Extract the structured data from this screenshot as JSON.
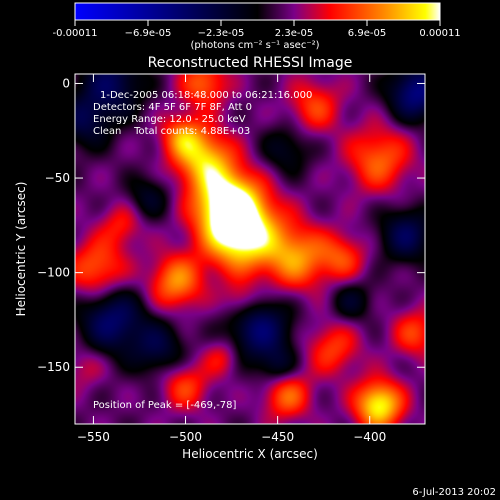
{
  "chart_data": {
    "type": "heatmap",
    "title": "Reconstructed RHESSI Image",
    "xlabel": "Heliocentric X (arcsec)",
    "ylabel": "Heliocentric Y (arcsec)",
    "xlim": [
      -560,
      -370
    ],
    "ylim": [
      -180,
      5
    ],
    "xticks": [
      -550,
      -500,
      -450,
      -400
    ],
    "yticks": [
      0,
      -50,
      -100,
      -150
    ],
    "colorbar": {
      "label": "(photons cm⁻² s⁻¹ asec⁻²)",
      "range": [
        -0.00011,
        0.00011
      ],
      "tick_labels": [
        "-0.00011",
        "−6.9e-05",
        "−2.3e-05",
        "2.3e-05",
        "6.9e-05",
        "0.00011"
      ],
      "colors": [
        "#0000ff",
        "#000000",
        "#7a0088",
        "#ff0000",
        "#ff8c00",
        "#ffff00",
        "#ffffff"
      ]
    },
    "info_lines": [
      "1-Dec-2005 06:18:48.000 to 06:21:16.000",
      "Detectors: 4F 5F 6F 7F 8F, Att 0",
      "Energy Range: 12.0 - 25.0 keV",
      "Clean    Total counts: 4.88E+03"
    ],
    "peak_label": "Position of Peak = [-469,-78]",
    "peak": [
      -469,
      -78
    ],
    "blobs": [
      {
        "x": -470,
        "y": -78,
        "r": 14,
        "v": 0.00011
      },
      {
        "x": -478,
        "y": -62,
        "r": 12,
        "v": 8e-05
      },
      {
        "x": -490,
        "y": -40,
        "r": 11,
        "v": 7e-05
      },
      {
        "x": -502,
        "y": -28,
        "r": 8,
        "v": 5e-05
      },
      {
        "x": -490,
        "y": 0,
        "r": 9,
        "v": 5e-05
      },
      {
        "x": -505,
        "y": -105,
        "r": 10,
        "v": 6e-05
      },
      {
        "x": -440,
        "y": -92,
        "r": 12,
        "v": 6e-05
      },
      {
        "x": -415,
        "y": -92,
        "r": 9,
        "v": 4e-05
      },
      {
        "x": -395,
        "y": -40,
        "r": 12,
        "v": 5e-05
      },
      {
        "x": -430,
        "y": -12,
        "r": 10,
        "v": 4e-05
      },
      {
        "x": -548,
        "y": -98,
        "r": 11,
        "v": 5e-05
      },
      {
        "x": -535,
        "y": -75,
        "r": 8,
        "v": 3e-05
      },
      {
        "x": -375,
        "y": -132,
        "r": 9,
        "v": 4e-05
      },
      {
        "x": -420,
        "y": -140,
        "r": 10,
        "v": 4e-05
      },
      {
        "x": -395,
        "y": -170,
        "r": 9,
        "v": 9e-05
      },
      {
        "x": -445,
        "y": -165,
        "r": 9,
        "v": 5e-05
      },
      {
        "x": -500,
        "y": -160,
        "r": 9,
        "v": 4e-05
      },
      {
        "x": -480,
        "y": -145,
        "r": 7,
        "v": 3e-05
      },
      {
        "x": -470,
        "y": -115,
        "r": 7,
        "v": 3e-05
      },
      {
        "x": -555,
        "y": -150,
        "r": 8,
        "v": 2e-05
      },
      {
        "x": -540,
        "y": 0,
        "r": 12,
        "v": -5e-05
      },
      {
        "x": -555,
        "y": -20,
        "r": 10,
        "v": -4e-05
      },
      {
        "x": -540,
        "y": -125,
        "r": 12,
        "v": -6e-05
      },
      {
        "x": -515,
        "y": -140,
        "r": 10,
        "v": -4e-05
      },
      {
        "x": -460,
        "y": -130,
        "r": 12,
        "v": -6e-05
      },
      {
        "x": -375,
        "y": -5,
        "r": 10,
        "v": -7e-05
      },
      {
        "x": -380,
        "y": -80,
        "r": 10,
        "v": -5e-05
      },
      {
        "x": -445,
        "y": -35,
        "r": 9,
        "v": -3e-05
      },
      {
        "x": -520,
        "y": -60,
        "r": 8,
        "v": -3e-05
      },
      {
        "x": -410,
        "y": -115,
        "r": 8,
        "v": -3e-05
      },
      {
        "x": -450,
        "y": -150,
        "r": 7,
        "v": -3e-05
      }
    ]
  },
  "footer": {
    "timestamp": "6-Jul-2013 20:02"
  }
}
